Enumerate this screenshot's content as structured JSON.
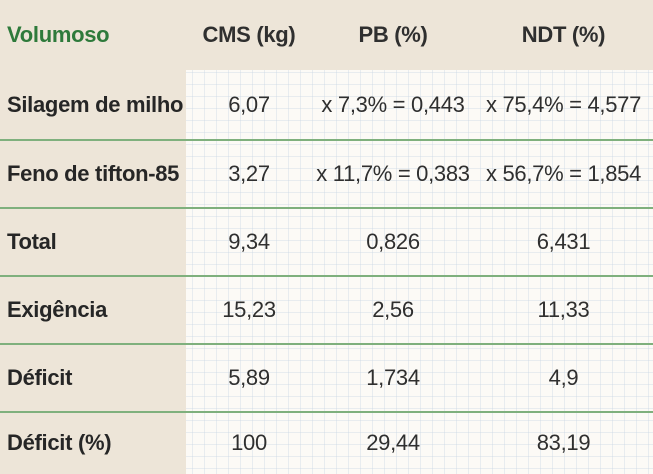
{
  "header": {
    "col0": "Volumoso",
    "col1": "CMS (kg)",
    "col2": "PB (%)",
    "col3": "NDT (%)"
  },
  "rows": [
    {
      "label": "Silagem de milho",
      "cms": "6,07",
      "pb": "x 7,3% = 0,443",
      "ndt": "x 75,4% = 4,577"
    },
    {
      "label": "Feno de tifton-85",
      "cms": "3,27",
      "pb": "x 11,7% = 0,383",
      "ndt": "x 56,7% = 1,854"
    },
    {
      "label": "Total",
      "cms": "9,34",
      "pb": "0,826",
      "ndt": "6,431"
    },
    {
      "label": "Exigência",
      "cms": "15,23",
      "pb": "2,56",
      "ndt": "11,33"
    },
    {
      "label": "Déficit",
      "cms": "5,89",
      "pb": "1,734",
      "ndt": "4,9"
    },
    {
      "label": "Déficit (%)",
      "cms": "100",
      "pb": "29,44",
      "ndt": "83,19"
    }
  ],
  "colors": {
    "header_band": "#ede5d8",
    "header_first": "#2e7a3b",
    "separator": "#7fb07d"
  }
}
